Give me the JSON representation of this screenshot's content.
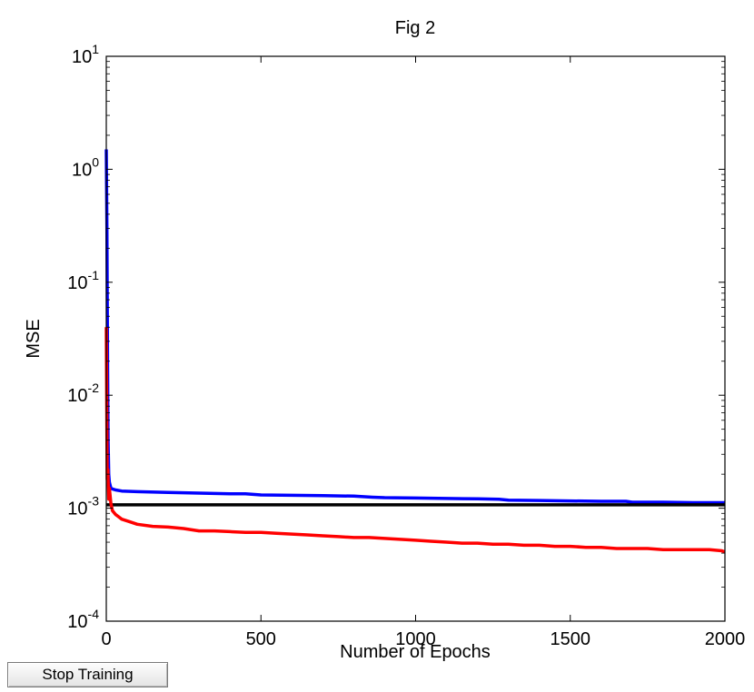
{
  "controls": {
    "stop_training_label": "Stop Training"
  },
  "chart_data": {
    "type": "line",
    "title": "Fig 2",
    "xlabel": "Number of Epochs",
    "ylabel": "MSE",
    "xlim": [
      0,
      2000
    ],
    "ylim": [
      0.0001,
      10
    ],
    "yscale": "log",
    "grid": false,
    "x_ticks": [
      0,
      500,
      1000,
      1500,
      2000
    ],
    "y_tick_values": [
      0.0001,
      0.001,
      0.01,
      0.1,
      1,
      10
    ],
    "y_tick_labels": [
      {
        "base": "10",
        "exp": "-4"
      },
      {
        "base": "10",
        "exp": "-3"
      },
      {
        "base": "10",
        "exp": "-2"
      },
      {
        "base": "10",
        "exp": "-1"
      },
      {
        "base": "10",
        "exp": "0"
      },
      {
        "base": "10",
        "exp": "1"
      }
    ],
    "series": [
      {
        "color": "#0000ff",
        "x": [
          0,
          2,
          4,
          6,
          8,
          10,
          15,
          20,
          30,
          50,
          100,
          200,
          300,
          400,
          450,
          500,
          600,
          700,
          800,
          860,
          900,
          1000,
          1100,
          1200,
          1270,
          1300,
          1400,
          1500,
          1600,
          1680,
          1700,
          1800,
          1900,
          2000
        ],
        "y": [
          1.5,
          0.3,
          0.02,
          0.004,
          0.002,
          0.0017,
          0.0015,
          0.00148,
          0.00145,
          0.00142,
          0.0014,
          0.00138,
          0.00136,
          0.00134,
          0.00134,
          0.00131,
          0.0013,
          0.00129,
          0.00128,
          0.00125,
          0.00124,
          0.00123,
          0.00122,
          0.00121,
          0.0012,
          0.00118,
          0.00117,
          0.00116,
          0.00115,
          0.00115,
          0.00113,
          0.00113,
          0.00112,
          0.00112
        ]
      },
      {
        "color": "#000000",
        "x": [
          0,
          2000
        ],
        "y": [
          0.00107,
          0.00107
        ]
      },
      {
        "color": "#ff0000",
        "x": [
          0,
          3,
          5,
          8,
          10,
          15,
          20,
          30,
          50,
          75,
          100,
          150,
          200,
          250,
          300,
          350,
          400,
          450,
          500,
          550,
          600,
          650,
          700,
          750,
          800,
          850,
          900,
          950,
          1000,
          1050,
          1100,
          1150,
          1200,
          1250,
          1300,
          1350,
          1400,
          1450,
          1500,
          1550,
          1600,
          1650,
          1700,
          1750,
          1800,
          1850,
          1900,
          1950,
          1990,
          2000
        ],
        "y": [
          0.04,
          0.0018,
          0.0022,
          0.0012,
          0.0015,
          0.0011,
          0.00095,
          0.00088,
          0.0008,
          0.00076,
          0.00072,
          0.00069,
          0.00068,
          0.00066,
          0.00063,
          0.00063,
          0.00062,
          0.00061,
          0.00061,
          0.0006,
          0.00059,
          0.00058,
          0.00057,
          0.00056,
          0.00055,
          0.00055,
          0.00054,
          0.00053,
          0.00052,
          0.00051,
          0.0005,
          0.00049,
          0.00049,
          0.00048,
          0.00048,
          0.00047,
          0.00047,
          0.00046,
          0.00046,
          0.00045,
          0.00045,
          0.00044,
          0.00044,
          0.00044,
          0.00043,
          0.00043,
          0.00043,
          0.00043,
          0.00042,
          0.00041
        ]
      }
    ]
  }
}
